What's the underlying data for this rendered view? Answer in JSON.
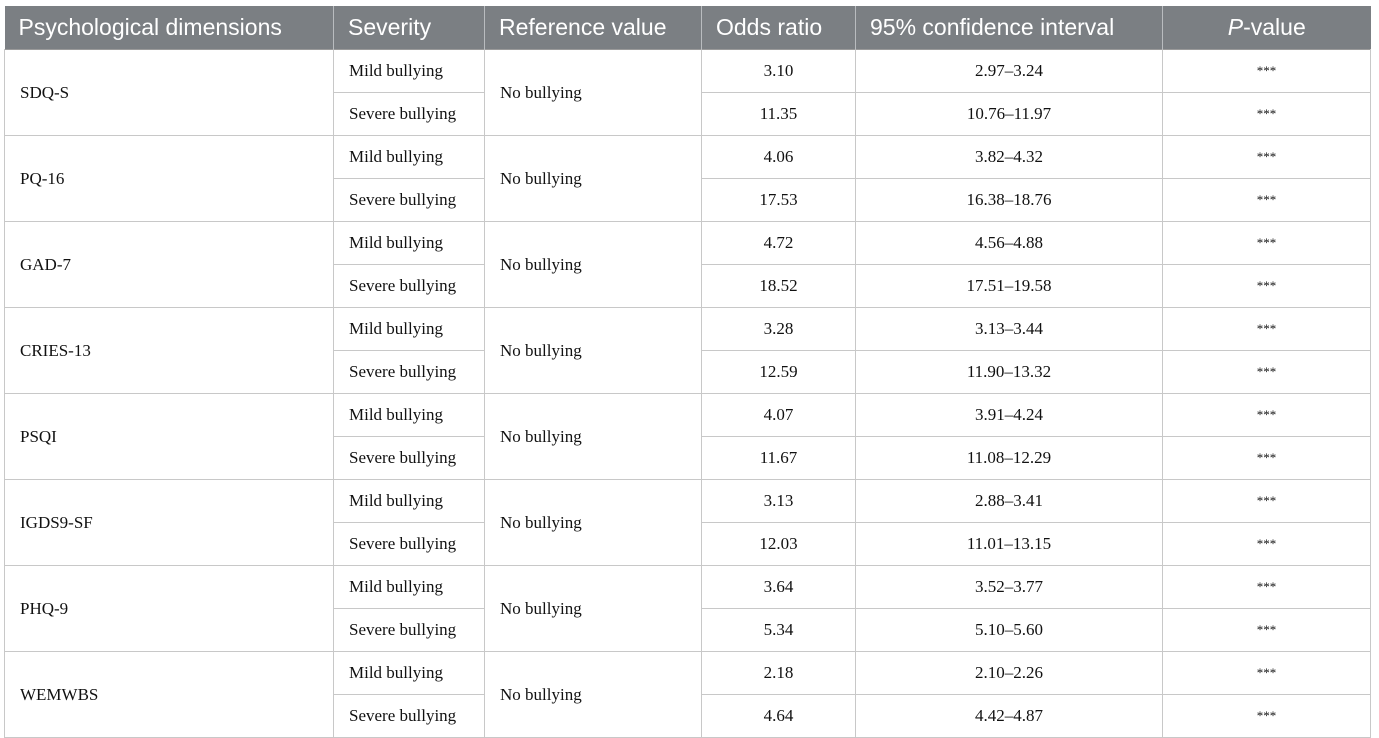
{
  "table": {
    "headers": {
      "dimension": "Psychological dimensions",
      "severity": "Severity",
      "reference": "Reference value",
      "odds_ratio": "Odds ratio",
      "ci": "95% confidence interval",
      "p_value_italic": "P",
      "p_value_rest": "-value"
    },
    "rows": [
      {
        "dimension": "SDQ-S",
        "reference": "No bullying",
        "mild": {
          "severity": "Mild bullying",
          "or": "3.10",
          "ci": "2.97–3.24",
          "p": "***"
        },
        "severe": {
          "severity": "Severe bullying",
          "or": "11.35",
          "ci": "10.76–11.97",
          "p": "***"
        }
      },
      {
        "dimension": "PQ-16",
        "reference": "No bullying",
        "mild": {
          "severity": "Mild bullying",
          "or": "4.06",
          "ci": "3.82–4.32",
          "p": "***"
        },
        "severe": {
          "severity": "Severe bullying",
          "or": "17.53",
          "ci": "16.38–18.76",
          "p": "***"
        }
      },
      {
        "dimension": "GAD-7",
        "reference": "No bullying",
        "mild": {
          "severity": "Mild bullying",
          "or": "4.72",
          "ci": "4.56–4.88",
          "p": "***"
        },
        "severe": {
          "severity": "Severe bullying",
          "or": "18.52",
          "ci": "17.51–19.58",
          "p": "***"
        }
      },
      {
        "dimension": "CRIES-13",
        "reference": "No bullying",
        "mild": {
          "severity": "Mild bullying",
          "or": "3.28",
          "ci": "3.13–3.44",
          "p": "***"
        },
        "severe": {
          "severity": "Severe bullying",
          "or": "12.59",
          "ci": "11.90–13.32",
          "p": "***"
        }
      },
      {
        "dimension": "PSQI",
        "reference": "No bullying",
        "mild": {
          "severity": "Mild bullying",
          "or": "4.07",
          "ci": "3.91–4.24",
          "p": "***"
        },
        "severe": {
          "severity": "Severe bullying",
          "or": "11.67",
          "ci": "11.08–12.29",
          "p": "***"
        }
      },
      {
        "dimension": "IGDS9-SF",
        "reference": "No bullying",
        "mild": {
          "severity": "Mild bullying",
          "or": "3.13",
          "ci": "2.88–3.41",
          "p": "***"
        },
        "severe": {
          "severity": "Severe bullying",
          "or": "12.03",
          "ci": "11.01–13.15",
          "p": "***"
        }
      },
      {
        "dimension": "PHQ-9",
        "reference": "No bullying",
        "mild": {
          "severity": "Mild bullying",
          "or": "3.64",
          "ci": "3.52–3.77",
          "p": "***"
        },
        "severe": {
          "severity": "Severe bullying",
          "or": "5.34",
          "ci": "5.10–5.60",
          "p": "***"
        }
      },
      {
        "dimension": "WEMWBS",
        "reference": "No bullying",
        "mild": {
          "severity": "Mild bullying",
          "or": "2.18",
          "ci": "2.10–2.26",
          "p": "***"
        },
        "severe": {
          "severity": "Severe bullying",
          "or": "4.64",
          "ci": "4.42–4.87",
          "p": "***"
        }
      }
    ]
  },
  "colors": {
    "header_background": "#7b7f83",
    "header_text": "#ffffff",
    "grid_line": "#c8c8c8"
  }
}
